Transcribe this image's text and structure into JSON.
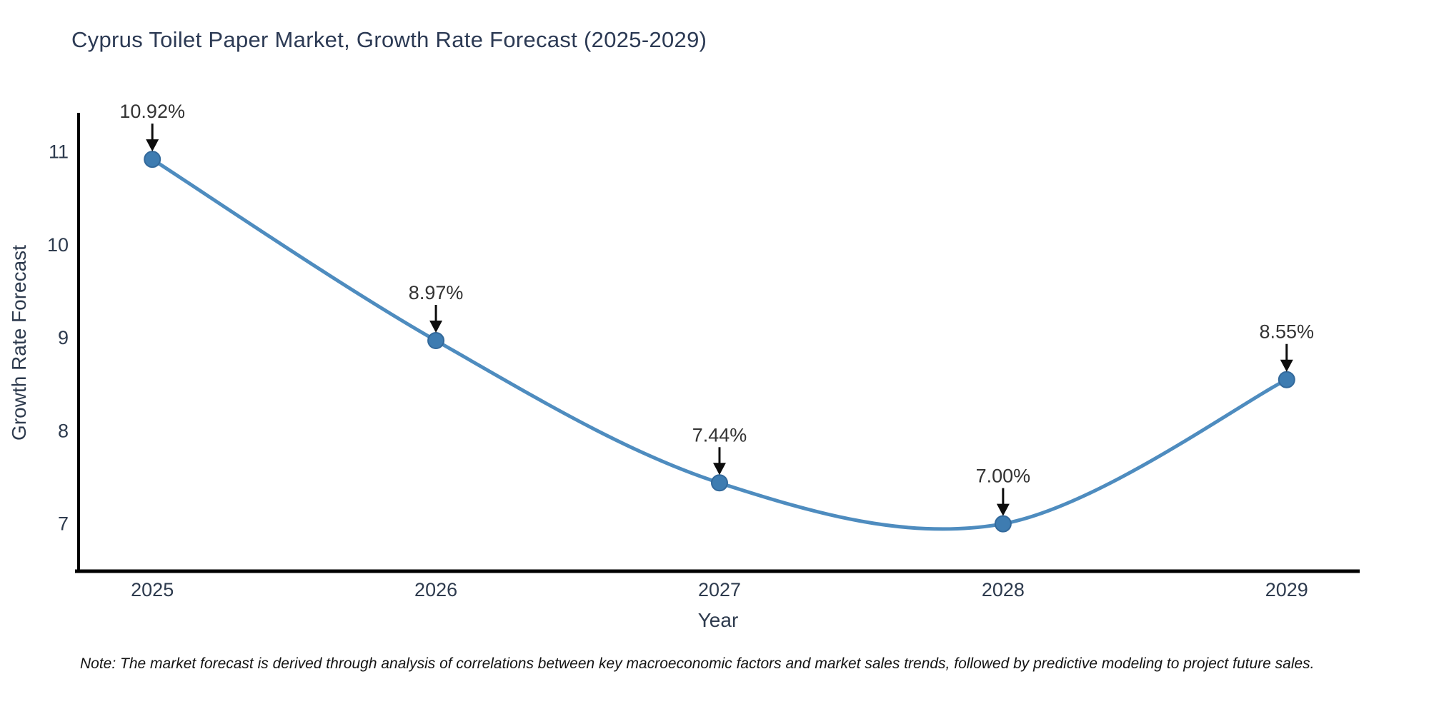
{
  "title": "Cyprus Toilet Paper Market, Growth Rate Forecast (2025-2029)",
  "note": "Note: The market forecast is derived through analysis of correlations between key macroeconomic factors and market sales trends, followed by predictive modeling to project future sales.",
  "chart_data": {
    "type": "line",
    "title": "Cyprus Toilet Paper Market, Growth Rate Forecast (2025-2029)",
    "xlabel": "Year",
    "ylabel": "Growth Rate Forecast",
    "x": [
      2025,
      2026,
      2027,
      2028,
      2029
    ],
    "values": [
      10.92,
      8.97,
      7.44,
      7.0,
      8.55
    ],
    "point_labels": [
      "10.92%",
      "8.97%",
      "7.44%",
      "7.00%",
      "8.55%"
    ],
    "xticks": [
      "2025",
      "2026",
      "2027",
      "2028",
      "2029"
    ],
    "yticks": [
      "7",
      "8",
      "9",
      "10",
      "11"
    ],
    "ytick_values": [
      7,
      8,
      9,
      10,
      11
    ],
    "xlim": [
      2024.74,
      2029.25
    ],
    "ylim": [
      6.49,
      11.42
    ],
    "grid": false,
    "legend_position": "none",
    "curve_style": "smooth-spline",
    "annotation_arrows": true,
    "colors": {
      "line": "#4e8cbf",
      "marker_fill": "#3e7cb1",
      "marker_edge": "#33699b",
      "axis": "#000000",
      "arrow": "#0d0d0d",
      "title_text": "#2c3a54",
      "tick_text": "#2e3b4e",
      "annotation_text": "#333333",
      "note_text": "#141414",
      "background": "#ffffff"
    }
  }
}
